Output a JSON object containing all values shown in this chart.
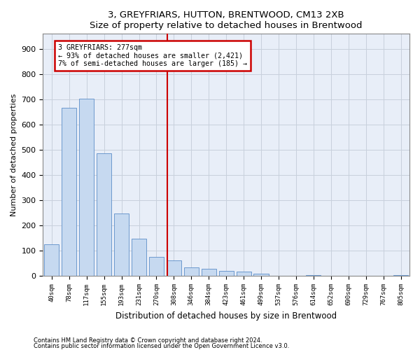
{
  "title1": "3, GREYFRIARS, HUTTON, BRENTWOOD, CM13 2XB",
  "title2": "Size of property relative to detached houses in Brentwood",
  "xlabel": "Distribution of detached houses by size in Brentwood",
  "ylabel": "Number of detached properties",
  "footnote1": "Contains HM Land Registry data © Crown copyright and database right 2024.",
  "footnote2": "Contains public sector information licensed under the Open Government Licence v3.0.",
  "bar_labels": [
    "40sqm",
    "78sqm",
    "117sqm",
    "155sqm",
    "193sqm",
    "231sqm",
    "270sqm",
    "308sqm",
    "346sqm",
    "384sqm",
    "423sqm",
    "461sqm",
    "499sqm",
    "537sqm",
    "576sqm",
    "614sqm",
    "652sqm",
    "690sqm",
    "729sqm",
    "767sqm",
    "805sqm"
  ],
  "bar_values": [
    125,
    668,
    703,
    487,
    248,
    148,
    75,
    62,
    35,
    28,
    20,
    17,
    10,
    0,
    0,
    4,
    0,
    0,
    0,
    0,
    4
  ],
  "bar_color": "#c6d9f0",
  "bar_edge_color": "#5b8dc8",
  "grid_color": "#c8d0dc",
  "vline_x": 6.63,
  "vline_color": "#cc0000",
  "annotation_text": "3 GREYFRIARS: 277sqm\n← 93% of detached houses are smaller (2,421)\n7% of semi-detached houses are larger (185) →",
  "annotation_box_color": "#cc0000",
  "ylim": [
    0,
    960
  ],
  "yticks": [
    0,
    100,
    200,
    300,
    400,
    500,
    600,
    700,
    800,
    900
  ],
  "background_color": "#e8eef8",
  "fig_width": 6.0,
  "fig_height": 5.0,
  "dpi": 100
}
